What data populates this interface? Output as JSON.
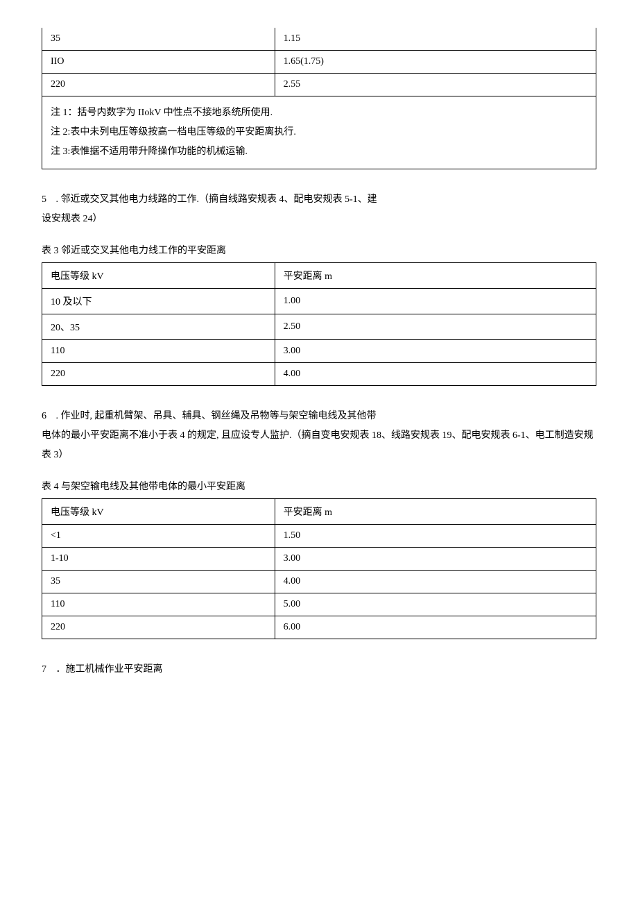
{
  "table1_partial": {
    "rows": [
      {
        "c1": "35",
        "c2": "1.15"
      },
      {
        "c1": "IIO",
        "c2": "1.65(1.75)"
      },
      {
        "c1": "220",
        "c2": "2.55"
      }
    ],
    "notes": [
      "注 1：括号内数字为 IIokV 中性点不接地系统所使用.",
      "注 2:表中未列电压等级按高一档电压等级的平安距离执行.",
      "注 3:表惟据不适用带升降操作功能的机械运输."
    ]
  },
  "section5": {
    "num": "5",
    "text": ". 邻近或交叉其他电力线路的工作.（摘自线路安规表 4、配电安规表 5-1、建",
    "text2": "设安规表 24）"
  },
  "table3": {
    "title": "表 3 邻近或交叉其他电力线工作的平安距离",
    "header": {
      "c1": "电压等级 kV",
      "c2": "平安距离 m"
    },
    "rows": [
      {
        "c1": "10 及以下",
        "c2": "1.00"
      },
      {
        "c1": "20、35",
        "c2": "2.50"
      },
      {
        "c1": "110",
        "c2": "3.00"
      },
      {
        "c1": "220",
        "c2": "4.00"
      }
    ]
  },
  "section6": {
    "num": "6",
    "text": ". 作业时, 起重机臂架、吊具、辅具、钢丝绳及吊物等与架空输电线及其他带",
    "text2": "电体的最小平安距离不准小于表 4 的规定, 且应设专人监护.（摘自变电安规表 18、线路安规表 19、配电安规表 6-1、电工制造安规表 3）"
  },
  "table4": {
    "title": "表 4 与架空输电线及其他带电体的最小平安距离",
    "header": {
      "c1": "电压等级 kV",
      "c2": "平安距离 m"
    },
    "rows": [
      {
        "c1": "<1",
        "c2": "1.50"
      },
      {
        "c1": "1-10",
        "c2": "3.00"
      },
      {
        "c1": "35",
        "c2": "4.00"
      },
      {
        "c1": "110",
        "c2": "5.00"
      },
      {
        "c1": "220",
        "c2": "6.00"
      }
    ]
  },
  "section7": {
    "num": "7",
    "text": "．施工机械作业平安距离"
  }
}
